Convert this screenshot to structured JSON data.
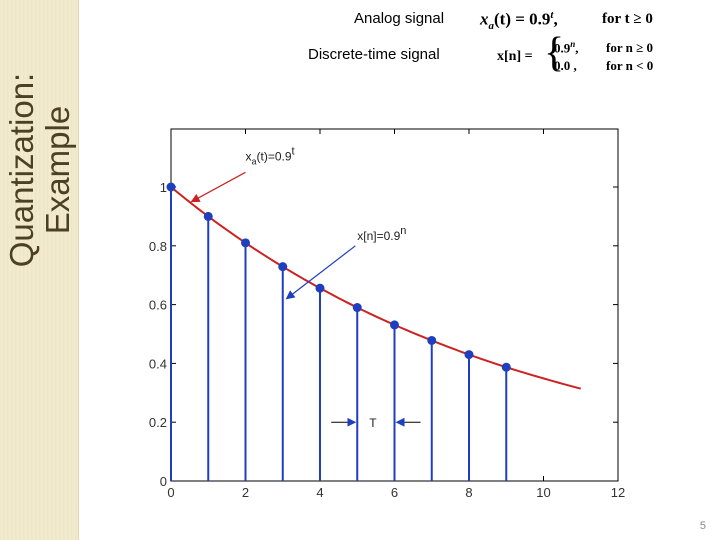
{
  "slide": {
    "title_line1": "Quantization:",
    "title_line2": "Example",
    "page_number": "5"
  },
  "header": {
    "analog_label": "Analog signal",
    "discrete_label": "Discrete-time signal",
    "analog_formula_lhs": "x",
    "analog_formula_sub": "a",
    "analog_formula_arg": "(t) = 0.9",
    "analog_formula_exp": "t",
    "analog_formula_cond": "for t ≥ 0",
    "discrete_formula_lhs": "x[n] =",
    "discrete_case1_value": "0.9",
    "discrete_case1_exp": "n",
    "discrete_case1_cond": "for n ≥ 0",
    "discrete_case2_value": "0.0 ,",
    "discrete_case2_cond": "for n < 0"
  },
  "chart_data": {
    "type": "line",
    "xlim": [
      0,
      12
    ],
    "ylim": [
      0,
      1
    ],
    "x_ticks": [
      "0",
      "2",
      "4",
      "6",
      "8",
      "10",
      "12"
    ],
    "y_ticks": [
      "0",
      "0.2",
      "0.4",
      "0.6",
      "0.8",
      "1"
    ],
    "grid": false,
    "series": [
      {
        "kind": "continuous",
        "color": "#cc2222",
        "x": [
          0,
          1,
          2,
          3,
          4,
          5,
          6,
          7,
          8,
          9,
          10,
          11
        ],
        "y": [
          1.0,
          0.9,
          0.81,
          0.729,
          0.656,
          0.59,
          0.531,
          0.478,
          0.43,
          0.387,
          0.349,
          0.314
        ]
      },
      {
        "kind": "stem",
        "color": "#1f3fbf",
        "x": [
          0,
          1,
          2,
          3,
          4,
          5,
          6,
          7,
          8,
          9
        ],
        "y": [
          1.0,
          0.9,
          0.81,
          0.729,
          0.656,
          0.59,
          0.531,
          0.478,
          0.43,
          0.387
        ]
      }
    ],
    "annotations": {
      "analog": {
        "base": "x",
        "sub": "a",
        "mid": "(t)=0.9",
        "sup": "t",
        "text_x": 2.0,
        "text_y": 1.09,
        "arrow_from": [
          2.0,
          1.05
        ],
        "arrow_to": [
          0.55,
          0.95
        ]
      },
      "discrete": {
        "base": "x[n]=0.9",
        "sup": "n",
        "text_x": 5.0,
        "text_y": 0.82,
        "arrow_from": [
          4.95,
          0.8
        ],
        "arrow_to": [
          3.1,
          0.62
        ]
      },
      "period": {
        "label": "T",
        "x_from": 5,
        "x_to": 6,
        "y": 0.2
      }
    }
  }
}
